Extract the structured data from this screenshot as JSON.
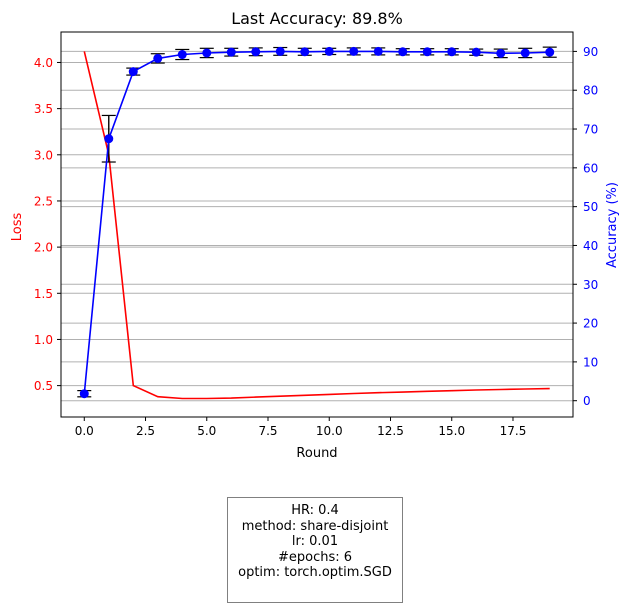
{
  "chart_data": {
    "type": "line",
    "title": "Last Accuracy: 89.8%",
    "xlabel": "Round",
    "ylabel_left": "Loss",
    "ylabel_right": "Accuracy (%)",
    "x": [
      0,
      1,
      2,
      3,
      4,
      5,
      6,
      7,
      8,
      9,
      10,
      11,
      12,
      13,
      14,
      15,
      16,
      17,
      18,
      19
    ],
    "series": [
      {
        "axis": "left",
        "color": "#ff0000",
        "values": [
          4.12,
          3.0,
          0.5,
          0.38,
          0.36,
          0.36,
          0.365,
          0.375,
          0.385,
          0.395,
          0.405,
          0.415,
          0.423,
          0.43,
          0.438,
          0.445,
          0.452,
          0.458,
          0.463,
          0.468
        ]
      },
      {
        "axis": "right",
        "color": "#0000ff",
        "marker": "circle",
        "values": [
          1.8,
          67.5,
          84.8,
          88.2,
          89.2,
          89.6,
          89.8,
          89.9,
          90.0,
          89.9,
          90.0,
          90.0,
          90.0,
          89.9,
          89.9,
          89.9,
          89.8,
          89.5,
          89.6,
          89.8
        ],
        "error": [
          0.8,
          6.0,
          0.9,
          1.2,
          1.3,
          1.2,
          1.0,
          1.0,
          1.0,
          0.9,
          0.8,
          0.9,
          0.9,
          0.8,
          0.8,
          0.8,
          0.8,
          1.1,
          1.2,
          1.3
        ]
      }
    ],
    "xlim": [
      -0.95,
      19.95
    ],
    "ylim_left": [
      0.16,
      4.33
    ],
    "ylim_right": [
      -4.2,
      95.0
    ],
    "xticks": [
      "0.0",
      "2.5",
      "5.0",
      "7.5",
      "10.0",
      "12.5",
      "15.0",
      "17.5"
    ],
    "yticks_left": [
      "0.5",
      "1.0",
      "1.5",
      "2.0",
      "2.5",
      "3.0",
      "3.5",
      "4.0"
    ],
    "yticks_right": [
      "0",
      "10",
      "20",
      "30",
      "40",
      "50",
      "60",
      "70",
      "80",
      "90"
    ],
    "grid": "horizontal"
  },
  "info": {
    "lines": [
      "HR: 0.4",
      "method: share-disjoint",
      "lr: 0.01",
      "#epochs: 6",
      "optim: torch.optim.SGD"
    ]
  }
}
